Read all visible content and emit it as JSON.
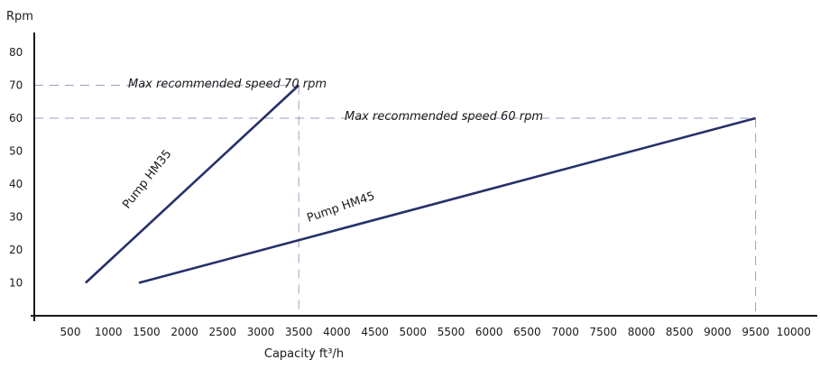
{
  "chart_data": {
    "type": "line",
    "title": "",
    "xlabel": "Capacity ft³/h",
    "ylabel": "Rpm",
    "xlim": [
      0,
      10000
    ],
    "ylim": [
      0,
      85
    ],
    "x_ticks": [
      500,
      1000,
      1500,
      2000,
      2500,
      3000,
      3500,
      4000,
      4500,
      5000,
      5500,
      6000,
      6500,
      7000,
      7500,
      8000,
      8500,
      9000,
      9500,
      10000
    ],
    "y_ticks": [
      10,
      20,
      30,
      40,
      50,
      60,
      70,
      80
    ],
    "grid": false,
    "series": [
      {
        "name": "Pump HM35",
        "color": "#26306a",
        "points": [
          [
            700,
            10
          ],
          [
            3500,
            70
          ]
        ]
      },
      {
        "name": "Pump HM45",
        "color": "#26306a",
        "points": [
          [
            1400,
            10
          ],
          [
            9500,
            60
          ]
        ]
      }
    ],
    "reference_lines": [
      {
        "label": "Max recommended speed 70 rpm",
        "y": 70,
        "x_end": 3500
      },
      {
        "label": "Max recommended speed 60 rpm",
        "y": 60,
        "x_end": 9500
      }
    ],
    "reference_line_color": "#9aa1c0"
  }
}
